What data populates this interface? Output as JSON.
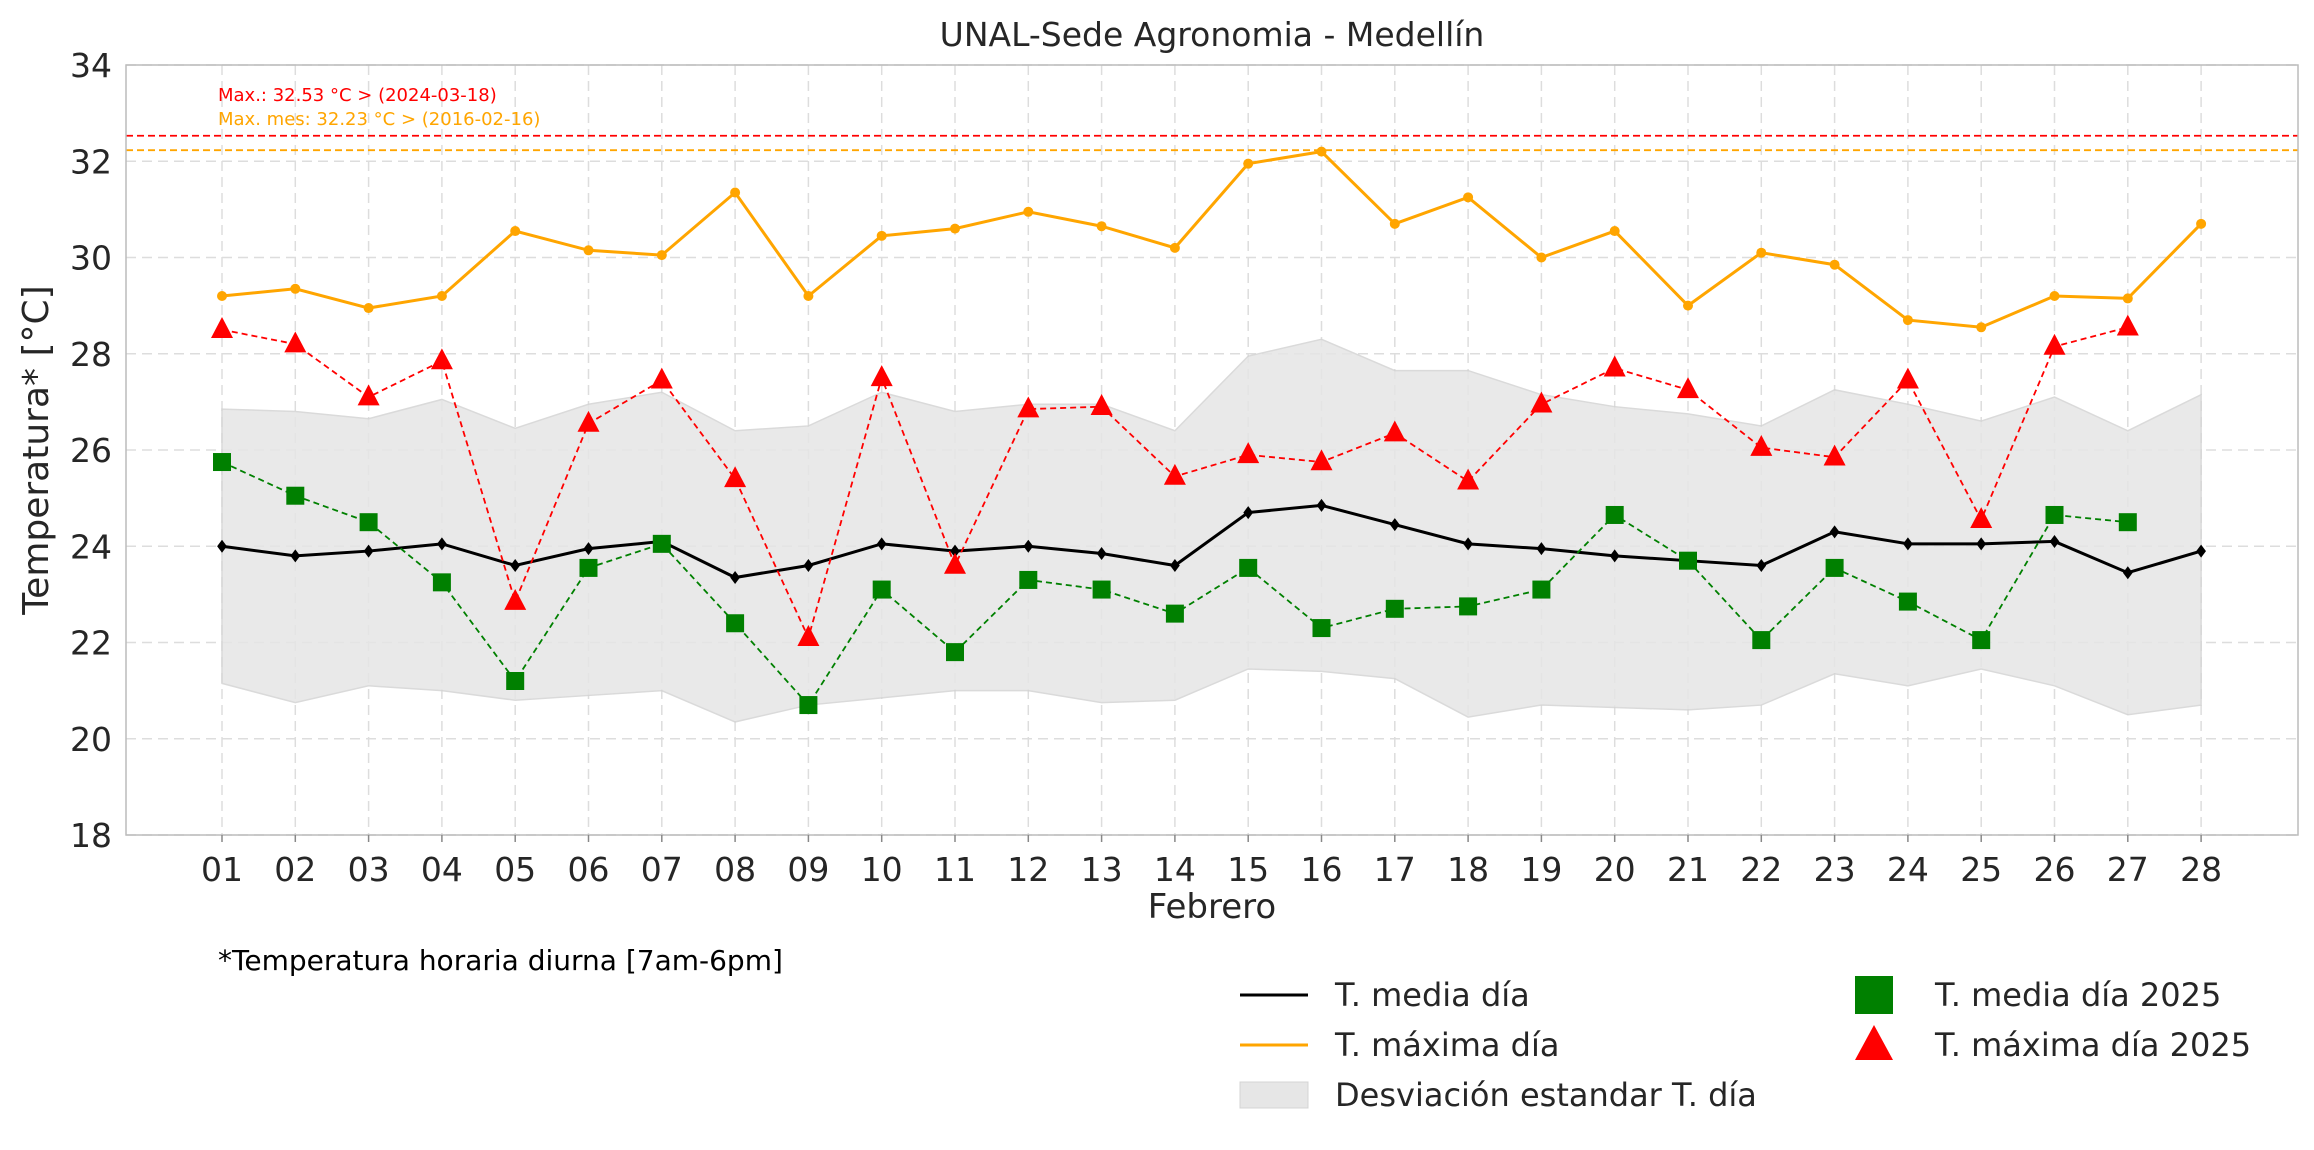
{
  "chart_data": {
    "type": "line",
    "title": "UNAL-Sede Agronomia - Medellín",
    "xlabel": "Febrero",
    "ylabel": "Temperatura* [°C]",
    "ylim": [
      18,
      34
    ],
    "yticks": [
      18,
      20,
      22,
      24,
      26,
      28,
      30,
      32,
      34
    ],
    "grid": true,
    "legend_position": "bottom-right",
    "footnote": "*Temperatura horaria diurna [7am-6pm]",
    "categories": [
      "01",
      "02",
      "03",
      "04",
      "05",
      "06",
      "07",
      "08",
      "09",
      "10",
      "11",
      "12",
      "13",
      "14",
      "15",
      "16",
      "17",
      "18",
      "19",
      "20",
      "21",
      "22",
      "23",
      "24",
      "25",
      "26",
      "27",
      "28"
    ],
    "series": [
      {
        "name": "T. media día",
        "color": "#000000",
        "marker": "diamond",
        "style": "solid",
        "values": [
          24.0,
          23.8,
          23.9,
          24.05,
          23.6,
          23.95,
          24.1,
          23.35,
          23.6,
          24.05,
          23.9,
          24.0,
          23.85,
          23.6,
          24.7,
          24.85,
          24.45,
          24.05,
          23.95,
          23.8,
          23.7,
          23.6,
          24.3,
          24.05,
          24.05,
          24.1,
          23.45,
          23.9
        ]
      },
      {
        "name": "T. máxima día",
        "color": "#ffa500",
        "marker": "circle",
        "style": "solid",
        "values": [
          29.2,
          29.35,
          28.95,
          29.2,
          30.55,
          30.15,
          30.05,
          31.35,
          29.2,
          30.45,
          30.6,
          30.95,
          30.65,
          30.2,
          31.95,
          32.2,
          30.7,
          31.25,
          30.0,
          30.55,
          29.0,
          30.1,
          29.85,
          28.7,
          28.55,
          29.2,
          29.15,
          30.7
        ]
      },
      {
        "name": "T. media día 2025",
        "color": "#008000",
        "marker": "square",
        "style": "dashed",
        "values": [
          25.75,
          25.05,
          24.5,
          23.25,
          21.2,
          23.55,
          24.05,
          22.4,
          20.7,
          23.1,
          21.8,
          23.3,
          23.1,
          22.6,
          23.55,
          22.3,
          22.7,
          22.75,
          23.1,
          24.65,
          23.7,
          22.05,
          23.55,
          22.85,
          22.05,
          24.65,
          24.5,
          null
        ]
      },
      {
        "name": "T. máxima día 2025",
        "color": "#ff0000",
        "marker": "triangle",
        "style": "dashed",
        "values": [
          28.5,
          28.2,
          27.1,
          27.85,
          22.85,
          26.55,
          27.45,
          25.4,
          22.1,
          27.5,
          23.6,
          26.85,
          26.9,
          25.45,
          25.9,
          25.75,
          26.35,
          25.35,
          26.95,
          27.7,
          27.25,
          26.05,
          25.85,
          27.45,
          24.55,
          28.15,
          28.55,
          null
        ]
      }
    ],
    "std_band": {
      "name": "Desviación estandar T. día",
      "color": "#e6e6e6",
      "upper": [
        26.85,
        26.8,
        26.65,
        27.05,
        26.45,
        26.95,
        27.2,
        26.4,
        26.5,
        27.2,
        26.8,
        26.95,
        26.95,
        26.4,
        27.95,
        28.3,
        27.65,
        27.65,
        27.15,
        26.9,
        26.75,
        26.5,
        27.25,
        26.95,
        26.6,
        27.1,
        26.4,
        27.15
      ],
      "lower": [
        21.15,
        20.75,
        21.1,
        21.0,
        20.8,
        20.9,
        21.0,
        20.35,
        20.7,
        20.85,
        21.0,
        21.0,
        20.75,
        20.8,
        21.45,
        21.4,
        21.25,
        20.45,
        20.7,
        20.65,
        20.6,
        20.7,
        21.35,
        21.1,
        21.45,
        21.1,
        20.5,
        20.7
      ]
    },
    "reference_lines": [
      {
        "value": 32.53,
        "color": "#ff0000",
        "label": "Max.: 32.53 °C  >  (2024-03-18)"
      },
      {
        "value": 32.23,
        "color": "#ffa500",
        "label": "Max. mes: 32.23 °C  >  (2016-02-16)"
      }
    ]
  }
}
